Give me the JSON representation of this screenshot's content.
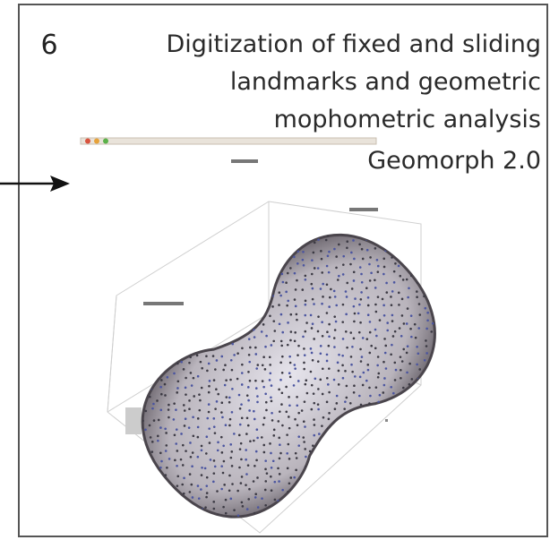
{
  "panel": {
    "number": "6",
    "title_lines": [
      "Digitization of fixed and sliding",
      "landmarks and geometric",
      "mophometric analysis"
    ],
    "software": "Geomorph 2.0"
  }
}
